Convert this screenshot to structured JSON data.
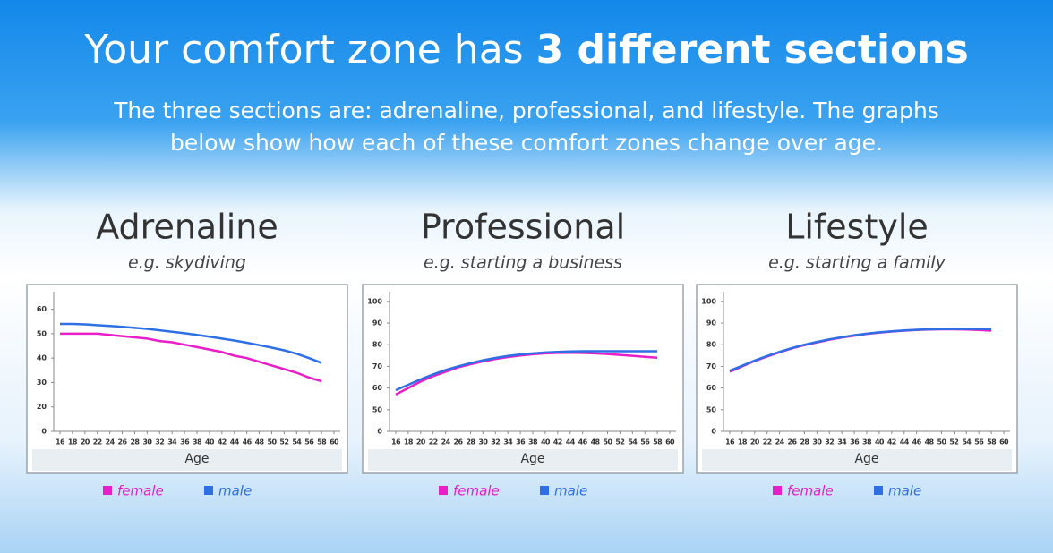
{
  "header": {
    "title": "Your comfort zone has",
    "title_emphasis": "3 different sections",
    "subtitle_lines": [
      "The three sections are: adrenaline, professional, and lifestyle. The graphs",
      "below show how each of these comfort zones change over age."
    ]
  },
  "chart_data": [
    {
      "type": "line",
      "title": "Adrenaline",
      "subtitle": "e.g. skydiving",
      "x_label": "Age",
      "x": [
        16,
        18,
        20,
        22,
        24,
        26,
        28,
        30,
        32,
        34,
        36,
        38,
        40,
        42,
        44,
        46,
        48,
        50,
        52,
        54,
        56,
        58
      ],
      "series": [
        {
          "name": "female",
          "color": "#e91ec8",
          "values": [
            50,
            50,
            50,
            50,
            49.5,
            49,
            48.5,
            48,
            47,
            46.5,
            45.5,
            44.5,
            43.5,
            42.5,
            41,
            40,
            38.5,
            37,
            35.5,
            34,
            32,
            30.5
          ]
        },
        {
          "name": "male",
          "color": "#2f6fe6",
          "values": [
            54,
            54,
            53.8,
            53.5,
            53.2,
            52.8,
            52.4,
            52,
            51.4,
            50.8,
            50.2,
            49.5,
            48.8,
            48,
            47.2,
            46.3,
            45.3,
            44.3,
            43.2,
            41.8,
            40,
            38
          ]
        }
      ],
      "xlim": [
        15,
        61
      ],
      "xticks": [
        16,
        18,
        20,
        22,
        24,
        26,
        28,
        30,
        32,
        34,
        36,
        38,
        40,
        42,
        44,
        46,
        48,
        50,
        52,
        54,
        56,
        58,
        60
      ],
      "ylim": [
        10,
        65
      ],
      "yticks": [
        {
          "value": 10,
          "label": "0"
        },
        20,
        30,
        40,
        50,
        60
      ]
    },
    {
      "type": "line",
      "title": "Professional",
      "subtitle": "e.g.  starting a business",
      "x_label": "Age",
      "x": [
        16,
        18,
        20,
        22,
        24,
        26,
        28,
        30,
        32,
        34,
        36,
        38,
        40,
        42,
        44,
        46,
        48,
        50,
        52,
        54,
        56,
        58
      ],
      "series": [
        {
          "name": "female",
          "color": "#e91ec8",
          "values": [
            57,
            60,
            63,
            65.5,
            67.5,
            69.5,
            71,
            72.3,
            73.4,
            74.3,
            75,
            75.6,
            76,
            76.2,
            76.3,
            76.2,
            76,
            75.7,
            75.3,
            74.9,
            74.4,
            74
          ]
        },
        {
          "name": "male",
          "color": "#2f6fe6",
          "values": [
            59,
            61.5,
            64,
            66.3,
            68.3,
            70,
            71.5,
            72.8,
            73.9,
            74.8,
            75.5,
            76,
            76.4,
            76.7,
            76.9,
            77,
            77,
            77,
            77,
            77,
            77,
            77
          ]
        }
      ],
      "xlim": [
        15,
        61
      ],
      "xticks": [
        16,
        18,
        20,
        22,
        24,
        26,
        28,
        30,
        32,
        34,
        36,
        38,
        40,
        42,
        44,
        46,
        48,
        50,
        52,
        54,
        56,
        58,
        60
      ],
      "ylim": [
        40,
        102
      ],
      "yticks": [
        {
          "value": 40,
          "label": "0"
        },
        50,
        60,
        70,
        80,
        90,
        100
      ]
    },
    {
      "type": "line",
      "title": "Lifestyle",
      "subtitle": "e.g. starting a family",
      "x_label": "Age",
      "x": [
        16,
        18,
        20,
        22,
        24,
        26,
        28,
        30,
        32,
        34,
        36,
        38,
        40,
        42,
        44,
        46,
        48,
        50,
        52,
        54,
        56,
        58
      ],
      "series": [
        {
          "name": "female",
          "color": "#e91ec8",
          "values": [
            67.5,
            70,
            72.5,
            74.5,
            76.5,
            78.3,
            79.8,
            81.1,
            82.3,
            83.3,
            84.2,
            85,
            85.6,
            86.1,
            86.5,
            86.8,
            87,
            87.1,
            87.1,
            87,
            86.8,
            86.5
          ]
        },
        {
          "name": "male",
          "color": "#2f6fe6",
          "values": [
            68,
            70.3,
            72.7,
            74.8,
            76.7,
            78.5,
            80,
            81.3,
            82.5,
            83.5,
            84.4,
            85.1,
            85.7,
            86.2,
            86.6,
            86.9,
            87.1,
            87.2,
            87.3,
            87.3,
            87.3,
            87.2
          ]
        }
      ],
      "xlim": [
        15,
        61
      ],
      "xticks": [
        16,
        18,
        20,
        22,
        24,
        26,
        28,
        30,
        32,
        34,
        36,
        38,
        40,
        42,
        44,
        46,
        48,
        50,
        52,
        54,
        56,
        58,
        60
      ],
      "ylim": [
        40,
        102
      ],
      "yticks": [
        {
          "value": 40,
          "label": "0"
        },
        50,
        60,
        70,
        80,
        90,
        100
      ]
    }
  ]
}
